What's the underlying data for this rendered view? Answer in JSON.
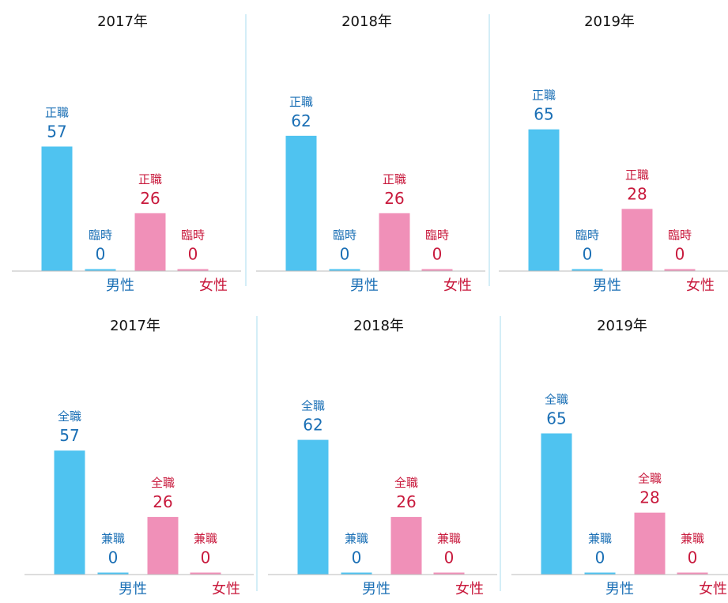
{
  "chart_data": [
    {
      "type": "bar",
      "title": "2017年",
      "categories": [
        "男性",
        "女性"
      ],
      "category_colors": [
        "#4fc3f0",
        "#f090b8"
      ],
      "label_colors": [
        "#1a6fb5",
        "#c8193c"
      ],
      "ylim": [
        0,
        80
      ],
      "series": [
        {
          "name": "正職",
          "values": [
            57,
            26
          ]
        },
        {
          "name": "臨時",
          "values": [
            0,
            0
          ]
        }
      ]
    },
    {
      "type": "bar",
      "title": "2018年",
      "categories": [
        "男性",
        "女性"
      ],
      "category_colors": [
        "#4fc3f0",
        "#f090b8"
      ],
      "label_colors": [
        "#1a6fb5",
        "#c8193c"
      ],
      "ylim": [
        0,
        80
      ],
      "series": [
        {
          "name": "正職",
          "values": [
            62,
            26
          ]
        },
        {
          "name": "臨時",
          "values": [
            0,
            0
          ]
        }
      ]
    },
    {
      "type": "bar",
      "title": "2019年",
      "categories": [
        "男性",
        "女性"
      ],
      "category_colors": [
        "#4fc3f0",
        "#f090b8"
      ],
      "label_colors": [
        "#1a6fb5",
        "#c8193c"
      ],
      "ylim": [
        0,
        80
      ],
      "series": [
        {
          "name": "正職",
          "values": [
            65,
            28
          ]
        },
        {
          "name": "臨時",
          "values": [
            0,
            0
          ]
        }
      ]
    },
    {
      "type": "bar",
      "title": "2017年",
      "categories": [
        "男性",
        "女性"
      ],
      "category_colors": [
        "#4fc3f0",
        "#f090b8"
      ],
      "label_colors": [
        "#1a6fb5",
        "#c8193c"
      ],
      "ylim": [
        0,
        80
      ],
      "series": [
        {
          "name": "全職",
          "values": [
            57,
            26
          ]
        },
        {
          "name": "兼職",
          "values": [
            0,
            0
          ]
        }
      ]
    },
    {
      "type": "bar",
      "title": "2018年",
      "categories": [
        "男性",
        "女性"
      ],
      "category_colors": [
        "#4fc3f0",
        "#f090b8"
      ],
      "label_colors": [
        "#1a6fb5",
        "#c8193c"
      ],
      "ylim": [
        0,
        80
      ],
      "series": [
        {
          "name": "全職",
          "values": [
            62,
            26
          ]
        },
        {
          "name": "兼職",
          "values": [
            0,
            0
          ]
        }
      ]
    },
    {
      "type": "bar",
      "title": "2019年",
      "categories": [
        "男性",
        "女性"
      ],
      "category_colors": [
        "#4fc3f0",
        "#f090b8"
      ],
      "label_colors": [
        "#1a6fb5",
        "#c8193c"
      ],
      "ylim": [
        0,
        80
      ],
      "series": [
        {
          "name": "全職",
          "values": [
            65,
            28
          ]
        },
        {
          "name": "兼職",
          "values": [
            0,
            0
          ]
        }
      ]
    }
  ]
}
